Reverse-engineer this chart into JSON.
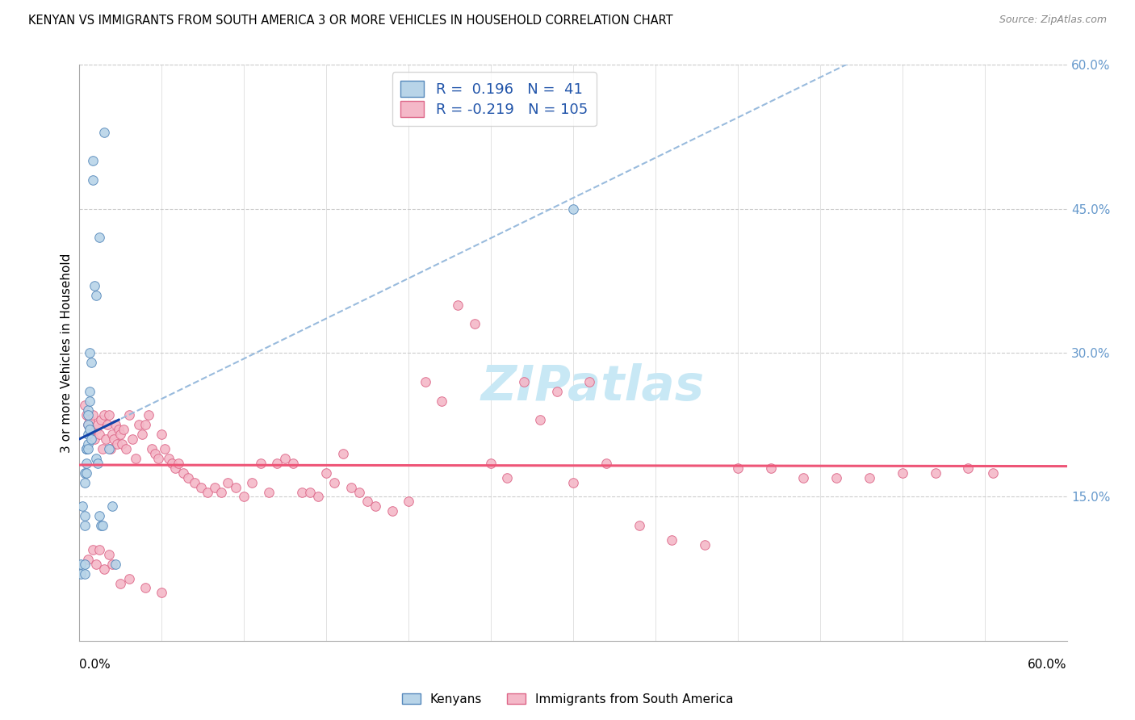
{
  "title": "KENYAN VS IMMIGRANTS FROM SOUTH AMERICA 3 OR MORE VEHICLES IN HOUSEHOLD CORRELATION CHART",
  "source": "Source: ZipAtlas.com",
  "ylabel": "3 or more Vehicles in Household",
  "xlim": [
    0.0,
    0.6
  ],
  "ylim": [
    0.0,
    0.6
  ],
  "right_ytick_vals": [
    0.15,
    0.3,
    0.45,
    0.6
  ],
  "right_ytick_labels": [
    "15.0%",
    "30.0%",
    "45.0%",
    "60.0%"
  ],
  "kenyan_color": "#b8d4e8",
  "sa_color": "#f4b8c8",
  "kenyan_edge": "#5588bb",
  "sa_edge": "#dd6688",
  "regression_blue": "#1144aa",
  "regression_pink": "#ee5577",
  "regression_dashed_color": "#99bbdd",
  "kenyan_R": 0.196,
  "kenyan_N": 41,
  "sa_R": -0.219,
  "sa_N": 105,
  "kenyan_x": [
    0.001,
    0.001,
    0.002,
    0.003,
    0.003,
    0.003,
    0.003,
    0.003,
    0.003,
    0.004,
    0.004,
    0.004,
    0.004,
    0.004,
    0.005,
    0.005,
    0.005,
    0.005,
    0.005,
    0.005,
    0.006,
    0.006,
    0.006,
    0.006,
    0.007,
    0.007,
    0.008,
    0.008,
    0.009,
    0.01,
    0.01,
    0.011,
    0.012,
    0.012,
    0.013,
    0.014,
    0.015,
    0.018,
    0.02,
    0.022,
    0.3
  ],
  "kenyan_y": [
    0.08,
    0.07,
    0.14,
    0.13,
    0.12,
    0.08,
    0.07,
    0.165,
    0.175,
    0.2,
    0.2,
    0.2,
    0.185,
    0.175,
    0.24,
    0.235,
    0.225,
    0.215,
    0.205,
    0.2,
    0.3,
    0.26,
    0.25,
    0.22,
    0.29,
    0.21,
    0.5,
    0.48,
    0.37,
    0.36,
    0.19,
    0.185,
    0.42,
    0.13,
    0.12,
    0.12,
    0.53,
    0.2,
    0.14,
    0.08,
    0.45
  ],
  "sa_x": [
    0.003,
    0.004,
    0.005,
    0.006,
    0.007,
    0.008,
    0.009,
    0.01,
    0.011,
    0.012,
    0.013,
    0.014,
    0.015,
    0.016,
    0.017,
    0.018,
    0.019,
    0.02,
    0.021,
    0.022,
    0.023,
    0.024,
    0.025,
    0.026,
    0.027,
    0.028,
    0.03,
    0.032,
    0.034,
    0.036,
    0.038,
    0.04,
    0.042,
    0.044,
    0.046,
    0.048,
    0.05,
    0.052,
    0.054,
    0.056,
    0.058,
    0.06,
    0.063,
    0.066,
    0.07,
    0.074,
    0.078,
    0.082,
    0.086,
    0.09,
    0.095,
    0.1,
    0.105,
    0.11,
    0.115,
    0.12,
    0.125,
    0.13,
    0.135,
    0.14,
    0.145,
    0.15,
    0.155,
    0.16,
    0.165,
    0.17,
    0.175,
    0.18,
    0.19,
    0.2,
    0.21,
    0.22,
    0.23,
    0.24,
    0.25,
    0.26,
    0.27,
    0.28,
    0.29,
    0.3,
    0.31,
    0.32,
    0.34,
    0.36,
    0.38,
    0.4,
    0.42,
    0.44,
    0.46,
    0.48,
    0.5,
    0.52,
    0.54,
    0.555,
    0.005,
    0.008,
    0.01,
    0.012,
    0.015,
    0.018,
    0.02,
    0.025,
    0.03,
    0.04,
    0.05
  ],
  "sa_y": [
    0.245,
    0.235,
    0.225,
    0.23,
    0.22,
    0.235,
    0.21,
    0.22,
    0.225,
    0.215,
    0.23,
    0.2,
    0.235,
    0.21,
    0.225,
    0.235,
    0.2,
    0.215,
    0.21,
    0.225,
    0.205,
    0.22,
    0.215,
    0.205,
    0.22,
    0.2,
    0.235,
    0.21,
    0.19,
    0.225,
    0.215,
    0.225,
    0.235,
    0.2,
    0.195,
    0.19,
    0.215,
    0.2,
    0.19,
    0.185,
    0.18,
    0.185,
    0.175,
    0.17,
    0.165,
    0.16,
    0.155,
    0.16,
    0.155,
    0.165,
    0.16,
    0.15,
    0.165,
    0.185,
    0.155,
    0.185,
    0.19,
    0.185,
    0.155,
    0.155,
    0.15,
    0.175,
    0.165,
    0.195,
    0.16,
    0.155,
    0.145,
    0.14,
    0.135,
    0.145,
    0.27,
    0.25,
    0.35,
    0.33,
    0.185,
    0.17,
    0.27,
    0.23,
    0.26,
    0.165,
    0.27,
    0.185,
    0.12,
    0.105,
    0.1,
    0.18,
    0.18,
    0.17,
    0.17,
    0.17,
    0.175,
    0.175,
    0.18,
    0.175,
    0.085,
    0.095,
    0.08,
    0.095,
    0.075,
    0.09,
    0.08,
    0.06,
    0.065,
    0.055,
    0.05
  ],
  "grid_color": "#cccccc",
  "spine_color": "#aaaaaa",
  "watermark_text": "ZIPatlas",
  "watermark_color": "#c8e8f5",
  "bottom_legend_labels": [
    "Kenyans",
    "Immigrants from South America"
  ]
}
